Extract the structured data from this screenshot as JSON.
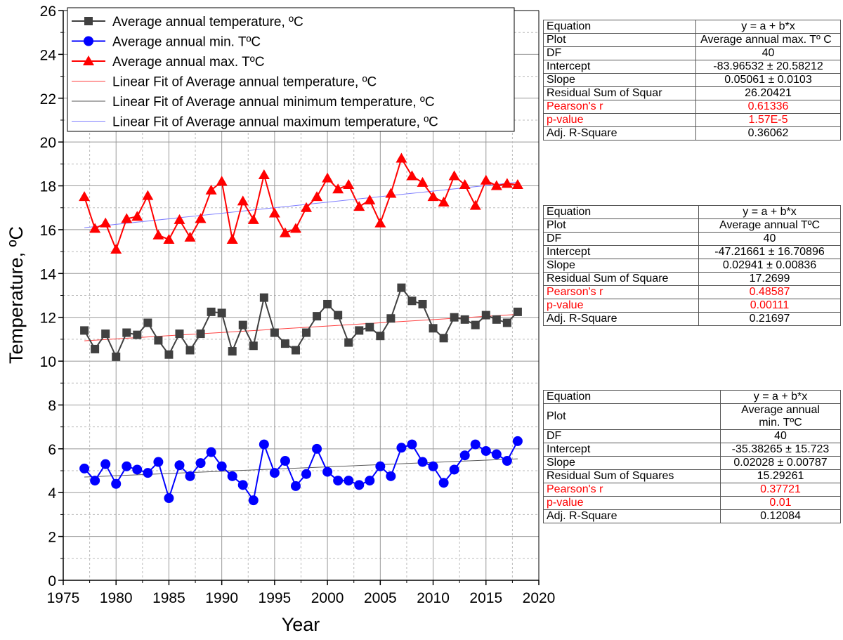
{
  "colors": {
    "max": "#ff0000",
    "avg": "#404040",
    "min": "#0000ff",
    "fit_avg": "#ff4040",
    "fit_min": "#5a5a5a",
    "fit_max": "#7f7fff",
    "red_text": "#ff0000"
  },
  "chart_data": {
    "type": "line",
    "xlabel": "Year",
    "ylabel": "Temperature, ºC",
    "xlim": [
      1975,
      2020
    ],
    "ylim": [
      0,
      26
    ],
    "x_ticks": [
      1975,
      1980,
      1985,
      1990,
      1995,
      2000,
      2005,
      2010,
      2015,
      2020
    ],
    "y_ticks": [
      0,
      2,
      4,
      6,
      8,
      10,
      12,
      14,
      16,
      18,
      20,
      22,
      24,
      26
    ],
    "grid": true,
    "legend_position": "top-left",
    "x": [
      1977,
      1978,
      1979,
      1980,
      1981,
      1982,
      1983,
      1984,
      1985,
      1986,
      1987,
      1988,
      1989,
      1990,
      1991,
      1992,
      1993,
      1994,
      1995,
      1996,
      1997,
      1998,
      1999,
      2000,
      2001,
      2002,
      2003,
      2004,
      2005,
      2006,
      2007,
      2008,
      2009,
      2010,
      2011,
      2012,
      2013,
      2014,
      2015,
      2016,
      2017,
      2018
    ],
    "series": [
      {
        "key": "avg",
        "name": "Average annual temperature, ºC",
        "marker": "square",
        "values": [
          11.4,
          10.55,
          11.25,
          10.2,
          11.3,
          11.2,
          11.75,
          10.95,
          10.3,
          11.25,
          10.5,
          11.25,
          12.25,
          12.2,
          10.45,
          11.65,
          10.7,
          12.9,
          11.3,
          10.8,
          10.5,
          11.3,
          12.05,
          12.6,
          12.1,
          10.85,
          11.4,
          11.55,
          11.15,
          11.95,
          13.35,
          12.75,
          12.6,
          11.5,
          11.05,
          12.0,
          11.9,
          11.65,
          12.1,
          11.9,
          11.75,
          12.25
        ]
      },
      {
        "key": "min",
        "name": "Average annual min. TºC",
        "marker": "circle",
        "values": [
          5.1,
          4.55,
          5.3,
          4.4,
          5.2,
          5.05,
          4.9,
          5.4,
          3.75,
          5.25,
          4.75,
          5.35,
          5.85,
          5.2,
          4.75,
          4.35,
          3.65,
          6.2,
          4.9,
          5.45,
          4.3,
          4.85,
          6.0,
          4.95,
          4.55,
          4.55,
          4.35,
          4.55,
          5.2,
          4.75,
          6.05,
          6.2,
          5.4,
          5.2,
          4.45,
          5.05,
          5.7,
          6.2,
          5.9,
          5.75,
          5.45,
          6.35
        ]
      },
      {
        "key": "max",
        "name": "Average annual max. TºC",
        "marker": "triangle",
        "values": [
          17.5,
          16.05,
          16.3,
          15.1,
          16.5,
          16.6,
          17.55,
          15.75,
          15.55,
          16.45,
          15.65,
          16.5,
          17.8,
          18.2,
          15.55,
          17.3,
          16.45,
          18.5,
          16.75,
          15.85,
          16.05,
          17.0,
          17.5,
          18.35,
          17.85,
          18.05,
          17.05,
          17.35,
          16.3,
          17.65,
          19.25,
          18.45,
          18.15,
          17.5,
          17.25,
          18.45,
          18.05,
          17.1,
          18.25,
          18.0,
          18.1,
          18.05
        ]
      }
    ],
    "fits": [
      {
        "key": "fit_avg",
        "name": "Linear Fit of Average annual temperature, ºC",
        "intercept": -47.21661,
        "slope": 0.02941
      },
      {
        "key": "fit_min",
        "name": "Linear Fit of Average annual minimum temperature, ºC",
        "intercept": -35.38265,
        "slope": 0.02028
      },
      {
        "key": "fit_max",
        "name": "Linear Fit of Average annual maximum temperature, ºC",
        "intercept": -83.96532,
        "slope": 0.05061
      }
    ]
  },
  "tables": {
    "max": {
      "equation_label": "Equation",
      "equation": "y = a + b*x",
      "plot_label": "Plot",
      "plot": "Average annual max. Tº C",
      "df_label": "DF",
      "df": "40",
      "intercept_label": "Intercept",
      "intercept": "-83.96532 ± 20.58212",
      "slope_label": "Slope",
      "slope": "0.05061 ± 0.0103",
      "rss_label": "Residual Sum of Squar",
      "rss": "26.20421",
      "pearson_label": "Pearson's r",
      "pearson": "0.61336",
      "pvalue_label": "p-value",
      "pvalue": "1.57E-5",
      "adjr_label": "Adj. R-Square",
      "adjr": "0.36062"
    },
    "avg": {
      "equation_label": "Equation",
      "equation": "y = a + b*x",
      "plot_label": "Plot",
      "plot": "Average annual TºC",
      "df_label": "DF",
      "df": "40",
      "intercept_label": "Intercept",
      "intercept": "-47.21661 ± 16.70896",
      "slope_label": "Slope",
      "slope": "0.02941 ± 0.00836",
      "rss_label": "Residual Sum of Square",
      "rss": "17.2699",
      "pearson_label": "Pearson's r",
      "pearson": "0.48587",
      "pvalue_label": "p-value",
      "pvalue": "0.00111",
      "adjr_label": "Adj. R-Square",
      "adjr": "0.21697"
    },
    "min": {
      "equation_label": "Equation",
      "equation": "y = a + b*x",
      "plot_label": "Plot",
      "plot": "Average annual min. TºC",
      "df_label": "DF",
      "df": "40",
      "intercept_label": "Intercept",
      "intercept": "-35.38265 ± 15.723",
      "slope_label": "Slope",
      "slope": "0.02028 ± 0.00787",
      "rss_label": "Residual Sum of Squares",
      "rss": "15.29261",
      "pearson_label": "Pearson's r",
      "pearson": "0.37721",
      "pvalue_label": "p-value",
      "pvalue": "0.01",
      "adjr_label": "Adj. R-Square",
      "adjr": "0.12084"
    }
  }
}
